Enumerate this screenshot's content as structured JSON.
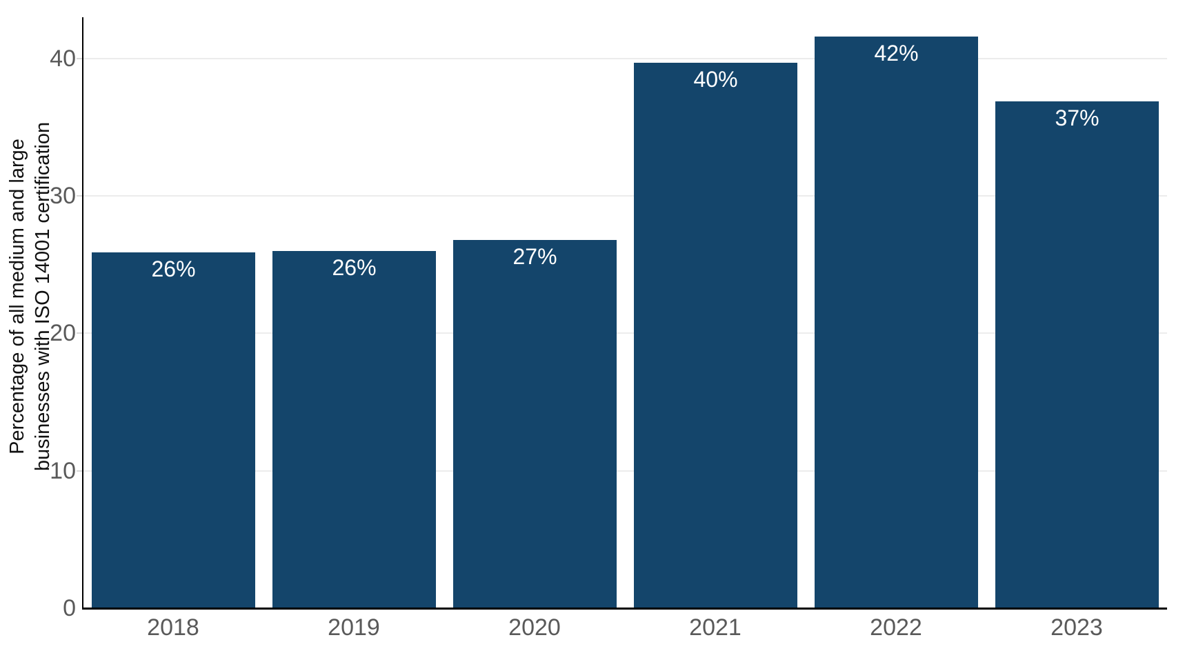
{
  "chart_data": {
    "type": "bar",
    "title": "",
    "categories": [
      "2018",
      "2019",
      "2020",
      "2021",
      "2022",
      "2023"
    ],
    "values": [
      26,
      26,
      27,
      40,
      42,
      37
    ],
    "bar_labels": [
      "26%",
      "26%",
      "27%",
      "40%",
      "42%",
      "37%"
    ],
    "plotted_values_estimate": [
      25.9,
      26.0,
      26.8,
      39.7,
      41.6,
      36.9
    ],
    "xlabel": "",
    "ylabel": "Percentage of all medium and large businesses with ISO 14001 certification",
    "ylabel_lines": [
      "Percentage of all medium and large",
      "businesses with ISO 14001 certification"
    ],
    "yticks": [
      "0",
      "10",
      "20",
      "30",
      "40"
    ],
    "ytick_values": [
      0,
      10,
      20,
      30,
      40
    ],
    "ylim": [
      0,
      43
    ],
    "grid": "horizontal",
    "legend": "none"
  },
  "colors": {
    "background": "#FFFFFF",
    "bar": "#14456B",
    "bar_label": "#FFFFFF",
    "tick_label": "#595959",
    "axis_line": "#000000",
    "gridline": "#ECECEC",
    "tick_mark": "#D9D9D9",
    "axis_title": "#111111"
  }
}
